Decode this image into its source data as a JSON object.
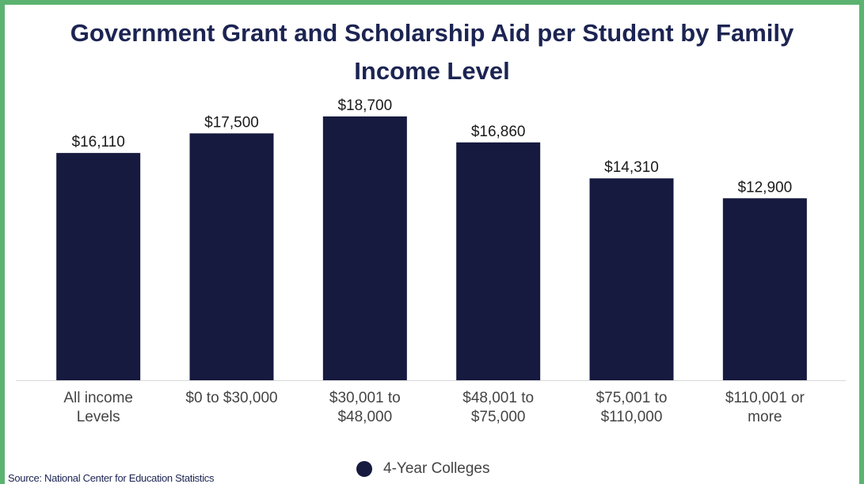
{
  "chart_data": {
    "type": "bar",
    "title": "Government Grant and Scholarship Aid per Student by Family Income Level",
    "categories": [
      [
        "All income",
        "Levels"
      ],
      [
        "$0 to $30,000"
      ],
      [
        "$30,001 to",
        "$48,000"
      ],
      [
        "$48,001 to",
        "$75,000"
      ],
      [
        "$75,001 to",
        "$110,000"
      ],
      [
        "$110,001 or",
        "more"
      ]
    ],
    "series": [
      {
        "name": "4-Year Colleges",
        "values": [
          16110,
          17500,
          18700,
          16860,
          14310,
          12900
        ],
        "labels": [
          "$16,110",
          "$17,500",
          "$18,700",
          "$16,860",
          "$14,310",
          "$12,900"
        ],
        "color": "#161a3f"
      }
    ],
    "ylim": [
      0,
      18700
    ],
    "grid": false,
    "legend_position": "bottom"
  },
  "source": "Source: National Center for Education Statistics",
  "colors": {
    "frame": "#5cb270",
    "title": "#1c2452",
    "bar": "#161a3f",
    "axis": "#d9d9d9"
  }
}
